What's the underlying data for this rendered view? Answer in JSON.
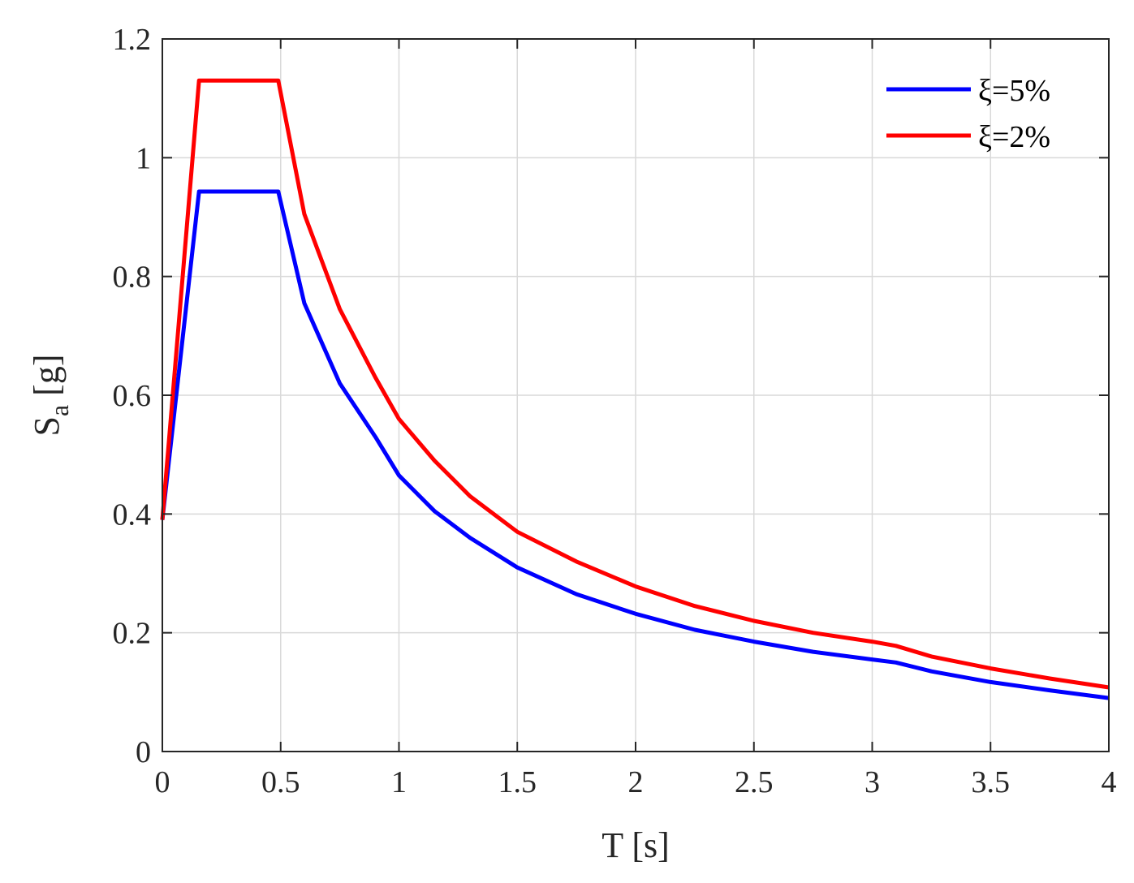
{
  "chart_data": {
    "type": "line",
    "title": "",
    "xlabel": "T [s]",
    "ylabel_main": "S",
    "ylabel_sub": "a",
    "ylabel_unit": " [g]",
    "xlim": [
      0,
      4
    ],
    "ylim": [
      0,
      1.2
    ],
    "xticks": [
      "0",
      "0.5",
      "1",
      "1.5",
      "2",
      "2.5",
      "3",
      "3.5",
      "4"
    ],
    "xtick_values": [
      0,
      0.5,
      1,
      1.5,
      2,
      2.5,
      3,
      3.5,
      4
    ],
    "yticks": [
      "0",
      "0.2",
      "0.4",
      "0.6",
      "0.8",
      "1",
      "1.2"
    ],
    "ytick_values": [
      0,
      0.2,
      0.4,
      0.6,
      0.8,
      1.0,
      1.2
    ],
    "grid": true,
    "legend_position": "top-right",
    "series": [
      {
        "name": "ξ=5%",
        "color": "#0000ff",
        "points": [
          [
            0,
            0.39
          ],
          [
            0.155,
            0.943
          ],
          [
            0.49,
            0.943
          ],
          [
            0.6,
            0.755
          ],
          [
            0.75,
            0.62
          ],
          [
            0.9,
            0.53
          ],
          [
            1.0,
            0.465
          ],
          [
            1.15,
            0.405
          ],
          [
            1.3,
            0.36
          ],
          [
            1.5,
            0.31
          ],
          [
            1.75,
            0.265
          ],
          [
            2.0,
            0.232
          ],
          [
            2.25,
            0.205
          ],
          [
            2.5,
            0.185
          ],
          [
            2.75,
            0.168
          ],
          [
            3.0,
            0.155
          ],
          [
            3.1,
            0.15
          ],
          [
            3.25,
            0.135
          ],
          [
            3.5,
            0.117
          ],
          [
            3.75,
            0.103
          ],
          [
            4.0,
            0.09
          ]
        ]
      },
      {
        "name": "ξ=2%",
        "color": "#ff0000",
        "points": [
          [
            0,
            0.39
          ],
          [
            0.155,
            1.13
          ],
          [
            0.49,
            1.13
          ],
          [
            0.6,
            0.905
          ],
          [
            0.75,
            0.745
          ],
          [
            0.9,
            0.63
          ],
          [
            1.0,
            0.56
          ],
          [
            1.15,
            0.49
          ],
          [
            1.3,
            0.43
          ],
          [
            1.5,
            0.37
          ],
          [
            1.75,
            0.32
          ],
          [
            2.0,
            0.278
          ],
          [
            2.25,
            0.245
          ],
          [
            2.5,
            0.22
          ],
          [
            2.75,
            0.2
          ],
          [
            3.0,
            0.185
          ],
          [
            3.1,
            0.178
          ],
          [
            3.25,
            0.16
          ],
          [
            3.5,
            0.14
          ],
          [
            3.75,
            0.123
          ],
          [
            4.0,
            0.108
          ]
        ]
      }
    ]
  }
}
